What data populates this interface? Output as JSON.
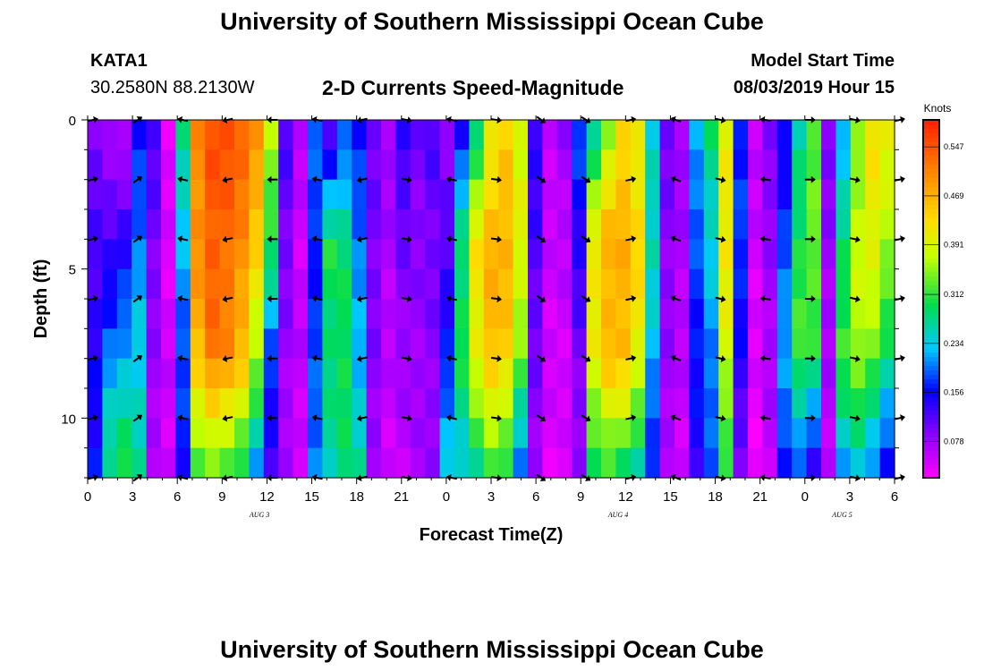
{
  "header": {
    "title": "University of Southern Mississippi Ocean Cube",
    "station": "KATA1",
    "coords": "30.2580N 88.2130W",
    "plot_title": "2-D Currents Speed-Magnitude",
    "model_label": "Model Start Time",
    "model_time": "08/03/2019 Hour 15"
  },
  "footer": {
    "title": "University of Southern Mississippi Ocean Cube"
  },
  "chart_data": {
    "type": "heatmap",
    "title": "2-D Currents Speed-Magnitude",
    "xlabel": "Forecast Time(Z)",
    "ylabel": "Depth (ft)",
    "x_ticks": [
      "0",
      "3",
      "6",
      "9",
      "12",
      "15",
      "18",
      "21",
      "0",
      "3",
      "6",
      "9",
      "12",
      "15",
      "18",
      "21",
      "0",
      "3",
      "6"
    ],
    "x_hours": [
      0,
      3,
      6,
      9,
      12,
      15,
      18,
      21,
      24,
      27,
      30,
      33,
      36,
      39,
      42,
      45,
      48,
      51,
      54
    ],
    "xlim": [
      0,
      54
    ],
    "date_labels": [
      {
        "label": "AUG 3",
        "hour": 11.5
      },
      {
        "label": "AUG 4",
        "hour": 35.5
      },
      {
        "label": "AUG 5",
        "hour": 50.5
      }
    ],
    "y_ticks": [
      0,
      5,
      10
    ],
    "ylim": [
      0,
      12
    ],
    "colorbar": {
      "label": "Knots",
      "min": 0.02,
      "max": 0.59,
      "ticks": [
        "0.547",
        "0.469",
        "0.391",
        "0.312",
        "0.234",
        "0.156",
        "0.078"
      ],
      "tick_values": [
        0.547,
        0.469,
        0.391,
        0.312,
        0.234,
        0.156,
        0.078
      ]
    },
    "column_speed_profiles": [
      [
        0.1,
        0.12,
        0.14,
        0.16
      ],
      [
        0.08,
        0.12,
        0.2,
        0.28
      ],
      [
        0.06,
        0.14,
        0.22,
        0.3
      ],
      [
        0.16,
        0.2,
        0.24,
        0.26
      ],
      [
        0.12,
        0.1,
        0.08,
        0.07
      ],
      [
        0.04,
        0.04,
        0.05,
        0.05
      ],
      [
        0.28,
        0.22,
        0.18,
        0.16
      ],
      [
        0.5,
        0.5,
        0.46,
        0.32
      ],
      [
        0.55,
        0.54,
        0.52,
        0.34
      ],
      [
        0.55,
        0.53,
        0.5,
        0.33
      ],
      [
        0.54,
        0.5,
        0.46,
        0.3
      ],
      [
        0.5,
        0.44,
        0.36,
        0.22
      ],
      [
        0.36,
        0.3,
        0.18,
        0.12
      ],
      [
        0.12,
        0.1,
        0.08,
        0.07
      ],
      [
        0.06,
        0.05,
        0.06,
        0.05
      ],
      [
        0.2,
        0.16,
        0.18,
        0.2
      ],
      [
        0.12,
        0.3,
        0.28,
        0.26
      ],
      [
        0.18,
        0.28,
        0.3,
        0.28
      ],
      [
        0.16,
        0.2,
        0.22,
        0.26
      ],
      [
        0.1,
        0.1,
        0.09,
        0.08
      ],
      [
        0.08,
        0.07,
        0.06,
        0.05
      ],
      [
        0.14,
        0.1,
        0.08,
        0.06
      ],
      [
        0.1,
        0.09,
        0.08,
        0.07
      ],
      [
        0.12,
        0.1,
        0.09,
        0.08
      ],
      [
        0.08,
        0.12,
        0.16,
        0.24
      ],
      [
        0.16,
        0.28,
        0.3,
        0.24
      ],
      [
        0.28,
        0.42,
        0.4,
        0.28
      ],
      [
        0.4,
        0.47,
        0.46,
        0.32
      ],
      [
        0.44,
        0.47,
        0.44,
        0.3
      ],
      [
        0.38,
        0.4,
        0.34,
        0.2
      ],
      [
        0.14,
        0.12,
        0.1,
        0.08
      ],
      [
        0.06,
        0.05,
        0.05,
        0.04
      ],
      [
        0.08,
        0.06,
        0.05,
        0.04
      ],
      [
        0.18,
        0.14,
        0.1,
        0.08
      ],
      [
        0.26,
        0.42,
        0.4,
        0.3
      ],
      [
        0.36,
        0.47,
        0.46,
        0.32
      ],
      [
        0.44,
        0.47,
        0.46,
        0.3
      ],
      [
        0.4,
        0.44,
        0.4,
        0.26
      ],
      [
        0.24,
        0.26,
        0.22,
        0.16
      ],
      [
        0.1,
        0.09,
        0.08,
        0.07
      ],
      [
        0.08,
        0.07,
        0.06,
        0.05
      ],
      [
        0.22,
        0.18,
        0.16,
        0.14
      ],
      [
        0.28,
        0.24,
        0.2,
        0.18
      ],
      [
        0.4,
        0.42,
        0.38,
        0.3
      ],
      [
        0.16,
        0.18,
        0.14,
        0.1
      ],
      [
        0.06,
        0.05,
        0.04,
        0.03
      ],
      [
        0.1,
        0.08,
        0.07,
        0.06
      ],
      [
        0.14,
        0.18,
        0.22,
        0.16
      ],
      [
        0.26,
        0.3,
        0.32,
        0.18
      ],
      [
        0.32,
        0.34,
        0.3,
        0.14
      ],
      [
        0.1,
        0.08,
        0.07,
        0.06
      ],
      [
        0.22,
        0.28,
        0.32,
        0.22
      ],
      [
        0.34,
        0.38,
        0.36,
        0.24
      ],
      [
        0.42,
        0.4,
        0.34,
        0.2
      ],
      [
        0.4,
        0.36,
        0.28,
        0.16
      ]
    ]
  }
}
